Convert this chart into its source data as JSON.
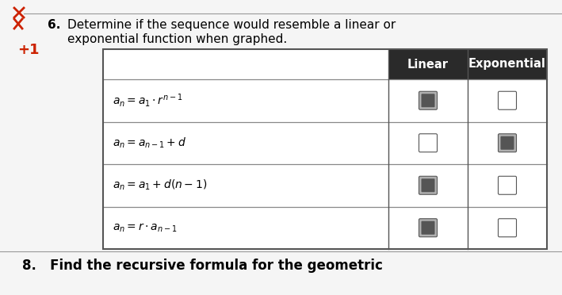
{
  "bg_color": "#e8e8e8",
  "page_color": "#f5f5f5",
  "header_bg": "#2a2a2a",
  "header_text_color": "#ffffff",
  "col_headers": [
    "Linear",
    "Exponential"
  ],
  "formulas": [
    "a_n = a_1 \\cdot r^{n-1}",
    "a_n = a_{n-1} + d",
    "a_n = a_1 + d(n - 1)",
    "a_n = r \\cdot a_{n-1}"
  ],
  "checked_linear": [
    true,
    false,
    true,
    true
  ],
  "checked_exponential": [
    false,
    true,
    false,
    false
  ],
  "title_num": "6.",
  "title_line1": "Determine if the sequence would resemble a linear or",
  "title_line2": "exponential function when graphed.",
  "bottom_text": "8.   Find the recursive formula for the geometric",
  "red_color": "#cc2200",
  "table_border_color": "#555555",
  "row_line_color": "#888888"
}
